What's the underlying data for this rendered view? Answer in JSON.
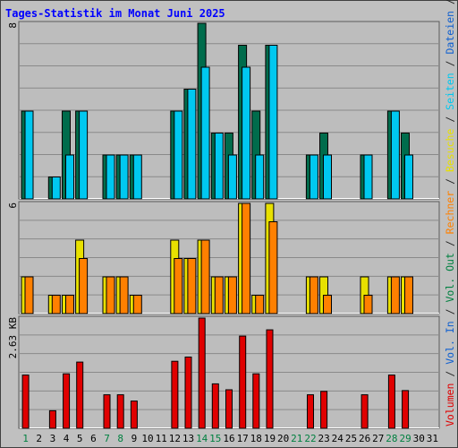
{
  "title": "Tages-Statistik im Monat Juni 2025",
  "right_legend": [
    {
      "text": "Anfragen",
      "color": "#006c4c"
    },
    {
      "text": " / ",
      "color": "#202020"
    },
    {
      "text": "Dateien",
      "color": "#1060d0"
    },
    {
      "text": " / ",
      "color": "#202020"
    },
    {
      "text": "Seiten",
      "color": "#00c8f0"
    },
    {
      "text": " / ",
      "color": "#202020"
    },
    {
      "text": "Besuche",
      "color": "#e8e000"
    },
    {
      "text": " / ",
      "color": "#202020"
    },
    {
      "text": "Rechner",
      "color": "#ff8000"
    },
    {
      "text": " / ",
      "color": "#202020"
    },
    {
      "text": "Vol. Out",
      "color": "#008040"
    },
    {
      "text": " / ",
      "color": "#202020"
    },
    {
      "text": "Vol. In",
      "color": "#1060d0"
    },
    {
      "text": " / ",
      "color": "#202020"
    },
    {
      "text": "Volumen",
      "color": "#e00000"
    }
  ],
  "colors": {
    "background": "#c0c0c0",
    "panel": "#bdbdbd",
    "grid": "#8a8a8a",
    "title": "#0000ff",
    "weekend_label": "#008040",
    "day_label": "#000000"
  },
  "chart_data": [
    {
      "type": "bar",
      "name": "top-panel",
      "ymax_label": "8",
      "ylim": [
        0,
        8
      ],
      "x": [
        1,
        2,
        3,
        4,
        5,
        6,
        7,
        8,
        9,
        10,
        11,
        12,
        13,
        14,
        15,
        16,
        17,
        18,
        19,
        20,
        21,
        22,
        23,
        24,
        25,
        26,
        27,
        28,
        29,
        30,
        31
      ],
      "series": [
        {
          "name": "Anfragen",
          "color": "#006c4c",
          "values": [
            4,
            0,
            1,
            4,
            4,
            0,
            2,
            2,
            2,
            0,
            0,
            4,
            5,
            8,
            3,
            3,
            7,
            4,
            7,
            0,
            0,
            2,
            3,
            0,
            0,
            2,
            0,
            4,
            3,
            0,
            0
          ]
        },
        {
          "name": "Seiten",
          "color": "#00c8f0",
          "values": [
            4,
            0,
            1,
            2,
            4,
            0,
            2,
            2,
            2,
            0,
            0,
            4,
            5,
            6,
            3,
            2,
            6,
            2,
            7,
            0,
            0,
            2,
            2,
            0,
            0,
            2,
            0,
            4,
            2,
            0,
            0
          ]
        }
      ]
    },
    {
      "type": "bar",
      "name": "middle-panel",
      "ymax_label": "6",
      "ylim": [
        0,
        6
      ],
      "x": [
        1,
        2,
        3,
        4,
        5,
        6,
        7,
        8,
        9,
        10,
        11,
        12,
        13,
        14,
        15,
        16,
        17,
        18,
        19,
        20,
        21,
        22,
        23,
        24,
        25,
        26,
        27,
        28,
        29,
        30,
        31
      ],
      "series": [
        {
          "name": "Besuche",
          "color": "#e8e000",
          "values": [
            2,
            0,
            1,
            1,
            4,
            0,
            2,
            2,
            1,
            0,
            0,
            4,
            3,
            4,
            2,
            2,
            6,
            1,
            6,
            0,
            0,
            2,
            2,
            0,
            0,
            2,
            0,
            2,
            2,
            0,
            0
          ]
        },
        {
          "name": "Rechner",
          "color": "#ff8000",
          "values": [
            2,
            0,
            1,
            1,
            3,
            0,
            2,
            2,
            1,
            0,
            0,
            3,
            3,
            4,
            2,
            2,
            6,
            1,
            5,
            0,
            0,
            2,
            1,
            0,
            0,
            1,
            0,
            2,
            2,
            0,
            0
          ]
        }
      ]
    },
    {
      "type": "bar",
      "name": "bottom-panel",
      "ymax_label": "2.63 KB",
      "ylim": [
        0,
        2.63
      ],
      "x": [
        1,
        2,
        3,
        4,
        5,
        6,
        7,
        8,
        9,
        10,
        11,
        12,
        13,
        14,
        15,
        16,
        17,
        18,
        19,
        20,
        21,
        22,
        23,
        24,
        25,
        26,
        27,
        28,
        29,
        30,
        31
      ],
      "series": [
        {
          "name": "Volumen",
          "color": "#e00000",
          "values": [
            1.27,
            0,
            0.42,
            1.3,
            1.58,
            0,
            0.8,
            0.8,
            0.65,
            0,
            0,
            1.6,
            1.7,
            2.63,
            1.06,
            0.92,
            2.2,
            1.3,
            2.35,
            0,
            0,
            0.8,
            0.88,
            0,
            0,
            0.8,
            0,
            1.27,
            0.9,
            0,
            0
          ]
        }
      ]
    }
  ],
  "x_labels": [
    {
      "t": "1",
      "we": true
    },
    {
      "t": "2",
      "we": false
    },
    {
      "t": "3",
      "we": false
    },
    {
      "t": "4",
      "we": false
    },
    {
      "t": "5",
      "we": false
    },
    {
      "t": "6",
      "we": false
    },
    {
      "t": "7",
      "we": true
    },
    {
      "t": "8",
      "we": true
    },
    {
      "t": "9",
      "we": false
    },
    {
      "t": "10",
      "we": false
    },
    {
      "t": "11",
      "we": false
    },
    {
      "t": "12",
      "we": false
    },
    {
      "t": "13",
      "we": false
    },
    {
      "t": "14",
      "we": true
    },
    {
      "t": "15",
      "we": true
    },
    {
      "t": "16",
      "we": false
    },
    {
      "t": "17",
      "we": false
    },
    {
      "t": "18",
      "we": false
    },
    {
      "t": "19",
      "we": false
    },
    {
      "t": "20",
      "we": false
    },
    {
      "t": "21",
      "we": true
    },
    {
      "t": "22",
      "we": true
    },
    {
      "t": "23",
      "we": false
    },
    {
      "t": "24",
      "we": false
    },
    {
      "t": "25",
      "we": false
    },
    {
      "t": "26",
      "we": false
    },
    {
      "t": "27",
      "we": false
    },
    {
      "t": "28",
      "we": true
    },
    {
      "t": "29",
      "we": true
    },
    {
      "t": "30",
      "we": false
    },
    {
      "t": "31",
      "we": false
    }
  ]
}
